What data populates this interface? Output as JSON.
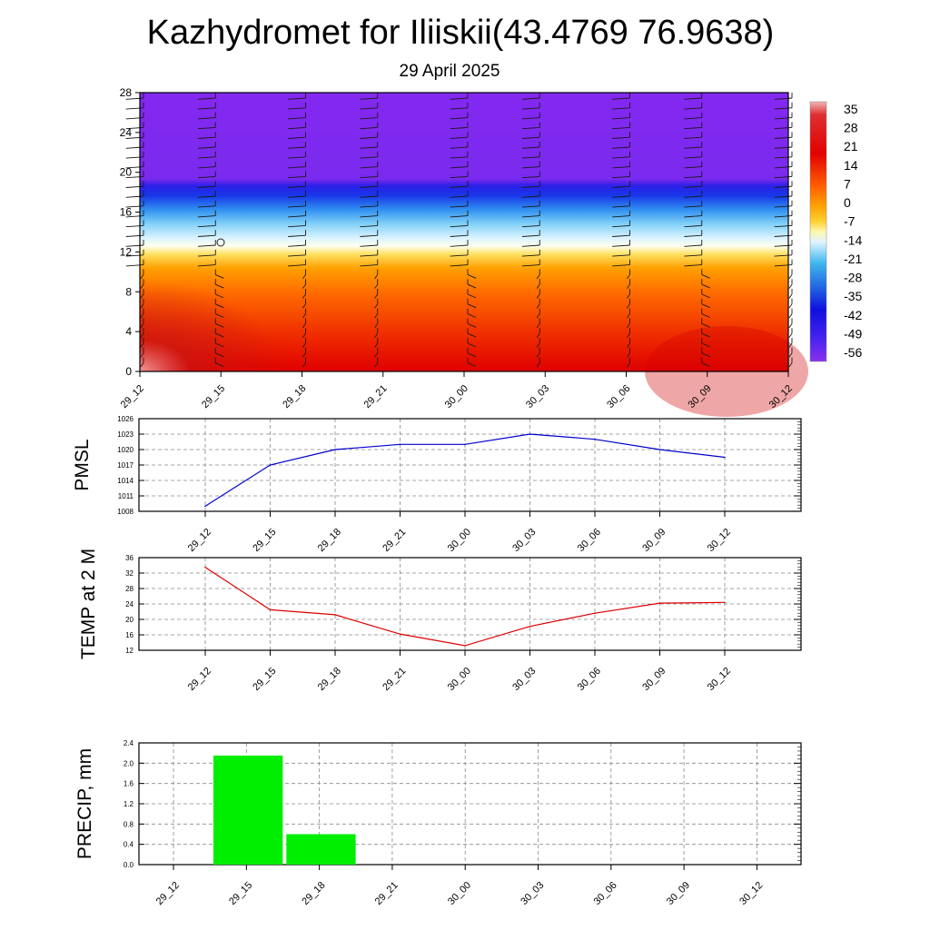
{
  "header": {
    "title": "Kazhydromet for Iliiskii(43.4769 76.9638)",
    "subtitle": "29 April 2025"
  },
  "chart_data": [
    {
      "type": "heatmap",
      "panel": "cross-section",
      "x_ticks": [
        "29_12",
        "29_15",
        "29_18",
        "29_21",
        "30_00",
        "30_03",
        "30_06",
        "30_09",
        "30_12"
      ],
      "y_ticks": [
        "0",
        "4",
        "8",
        "12",
        "16",
        "20",
        "24",
        "28"
      ],
      "ylim": [
        0,
        28
      ],
      "colorbar_labels": [
        "35",
        "28",
        "21",
        "14",
        "7",
        "0",
        "-7",
        "-14",
        "-21",
        "-28",
        "-35",
        "-42",
        "-49",
        "-56"
      ],
      "temperature_by_height": [
        {
          "height": 0,
          "value": 24
        },
        {
          "height": 4,
          "value": 20
        },
        {
          "height": 8,
          "value": 14
        },
        {
          "height": 10,
          "value": 9
        },
        {
          "height": 12,
          "value": 3
        },
        {
          "height": 13,
          "value": -8
        },
        {
          "height": 14,
          "value": -18
        },
        {
          "height": 16,
          "value": -30
        },
        {
          "height": 18,
          "value": -45
        },
        {
          "height": 19,
          "value": -56
        },
        {
          "height": 28,
          "value": -58
        }
      ],
      "wind_barbs": true
    },
    {
      "type": "line",
      "ylabel": "PMSL",
      "categories": [
        "29_12",
        "29_15",
        "29_18",
        "29_21",
        "30_00",
        "30_03",
        "30_06",
        "30_09",
        "30_12"
      ],
      "values": [
        1009,
        1017,
        1020,
        1021,
        1021,
        1023,
        1022,
        1020,
        1018.5
      ],
      "y_ticks": [
        "1008",
        "1011",
        "1014",
        "1017",
        "1020",
        "1023",
        "1026"
      ],
      "ylim": [
        1008,
        1026
      ],
      "color": "#0000cc",
      "grid": true
    },
    {
      "type": "line",
      "ylabel": "TEMP at 2 M",
      "categories": [
        "29_12",
        "29_15",
        "29_18",
        "29_21",
        "30_00",
        "30_03",
        "30_06",
        "30_09",
        "30_12"
      ],
      "values": [
        33.5,
        22.5,
        21.2,
        16.2,
        13.2,
        18.2,
        21.6,
        24.2,
        24.4
      ],
      "y_ticks": [
        "12",
        "16",
        "20",
        "24",
        "28",
        "32",
        "36"
      ],
      "ylim": [
        12,
        36
      ],
      "color": "#dd0000",
      "grid": true
    },
    {
      "type": "bar",
      "ylabel": "PRECIP, mm",
      "categories": [
        "29_12",
        "29_15",
        "29_18",
        "29_21",
        "30_00",
        "30_03",
        "30_06",
        "30_09",
        "30_12"
      ],
      "values": [
        0,
        2.15,
        0.6,
        0,
        0,
        0,
        0,
        0,
        0
      ],
      "y_ticks": [
        "0.0",
        "0.4",
        "0.8",
        "1.2",
        "1.6",
        "2.0",
        "2.4"
      ],
      "ylim": [
        0,
        2.4
      ],
      "color": "#00ee00",
      "grid": true
    }
  ]
}
